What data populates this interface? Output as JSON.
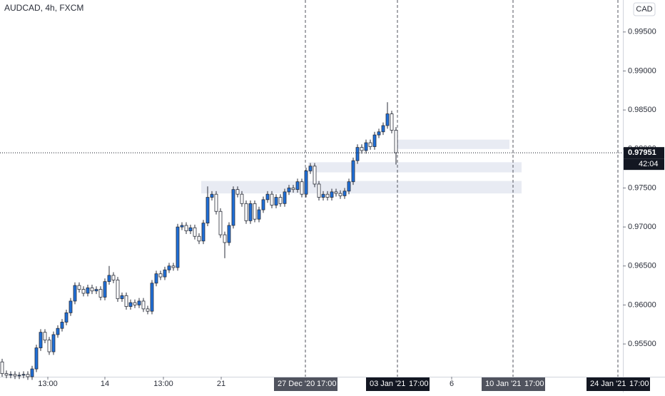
{
  "chart_data": {
    "type": "candlestick",
    "title": "AUDCAD, 4h, FXCM",
    "currency": "CAD",
    "countdown": "42:04",
    "up_color": "#1e6fd9",
    "down_color": "#ffffff",
    "wick_color": "#2a2e39",
    "ylim": [
      0.9508,
      0.9991
    ],
    "yticks": [
      {
        "value": 0.955,
        "label": "0.95500"
      },
      {
        "value": 0.96,
        "label": "0.96000"
      },
      {
        "value": 0.965,
        "label": "0.96500"
      },
      {
        "value": 0.97,
        "label": "0.97000"
      },
      {
        "value": 0.975,
        "label": "0.97500"
      },
      {
        "value": 0.98,
        "label": "0.98000"
      },
      {
        "value": 0.985,
        "label": "0.98500"
      },
      {
        "value": 0.99,
        "label": "0.99000"
      },
      {
        "value": 0.995,
        "label": "0.99500"
      }
    ],
    "xlim": [
      -0.5,
      145
    ],
    "xticks": [
      {
        "value": 10.67,
        "label": "13:00"
      },
      {
        "value": 24,
        "label": "14"
      },
      {
        "value": 37.67,
        "label": "13:00"
      },
      {
        "value": 51.17,
        "label": "21"
      },
      {
        "value": 105,
        "label": "6"
      }
    ],
    "time_markers": [
      {
        "date": "27 Dec '20",
        "time": "17:00"
      },
      {
        "date": "03 Jan '21",
        "time": "17:00"
      },
      {
        "date": "10 Jan '21",
        "time": "17:00"
      },
      {
        "date": "24 Jan '21",
        "time": "17:00"
      }
    ],
    "zones": [
      {
        "low": 0.98,
        "high": 0.9812
      },
      {
        "low": 0.977,
        "high": 0.9783
      },
      {
        "low": 0.9743,
        "high": 0.9759
      }
    ],
    "open": [
      0.9527,
      0.9512,
      0.951,
      0.9511,
      0.9509,
      0.951,
      0.9511,
      0.9508,
      0.9518,
      0.9545,
      0.9565,
      0.9555,
      0.954,
      0.9562,
      0.957,
      0.9578,
      0.959,
      0.9605,
      0.9625,
      0.962,
      0.9615,
      0.9622,
      0.9618,
      0.962,
      0.961,
      0.963,
      0.9638,
      0.9632,
      0.9608,
      0.9612,
      0.9598,
      0.9603,
      0.96,
      0.9605,
      0.9595,
      0.9592,
      0.9628,
      0.964,
      0.9636,
      0.9645,
      0.965,
      0.9648,
      0.97,
      0.9702,
      0.9695,
      0.9699,
      0.9688,
      0.9682,
      0.9705,
      0.9738,
      0.9742,
      0.972,
      0.969,
      0.968,
      0.9702,
      0.9748,
      0.9742,
      0.973,
      0.9708,
      0.973,
      0.971,
      0.9722,
      0.9735,
      0.9742,
      0.9728,
      0.9738,
      0.973,
      0.9745,
      0.975,
      0.9748,
      0.9758,
      0.9742,
      0.9772,
      0.9778,
      0.9755,
      0.9738,
      0.9742,
      0.9738,
      0.9745,
      0.9743,
      0.974,
      0.9746,
      0.9758,
      0.9785,
      0.9802,
      0.9798,
      0.9808,
      0.9803,
      0.9818,
      0.9822,
      0.983,
      0.9845,
      0.9824
    ],
    "high": [
      0.9531,
      0.9516,
      0.9515,
      0.9515,
      0.9514,
      0.9515,
      0.9515,
      0.9522,
      0.9549,
      0.9569,
      0.9569,
      0.9559,
      0.9566,
      0.9574,
      0.9582,
      0.9594,
      0.9609,
      0.9629,
      0.9629,
      0.9624,
      0.9626,
      0.9626,
      0.9624,
      0.9624,
      0.9634,
      0.965,
      0.9642,
      0.9636,
      0.9616,
      0.9616,
      0.9607,
      0.9607,
      0.9609,
      0.9609,
      0.9599,
      0.9632,
      0.9644,
      0.9644,
      0.9649,
      0.9654,
      0.9654,
      0.9704,
      0.9706,
      0.9706,
      0.9703,
      0.9703,
      0.9692,
      0.9709,
      0.9752,
      0.9746,
      0.9746,
      0.9724,
      0.9694,
      0.9706,
      0.9752,
      0.9752,
      0.9746,
      0.9734,
      0.9734,
      0.9734,
      0.9726,
      0.9739,
      0.9746,
      0.9746,
      0.9742,
      0.9742,
      0.9749,
      0.9754,
      0.9754,
      0.9762,
      0.9762,
      0.9776,
      0.9782,
      0.9782,
      0.9759,
      0.9746,
      0.9746,
      0.9749,
      0.9749,
      0.9747,
      0.975,
      0.9762,
      0.9789,
      0.9806,
      0.9806,
      0.9812,
      0.9812,
      0.9822,
      0.9826,
      0.9834,
      0.986,
      0.9849,
      0.9828
    ],
    "low": [
      0.9508,
      0.9506,
      0.9506,
      0.9505,
      0.9505,
      0.9506,
      0.9504,
      0.9504,
      0.9514,
      0.9541,
      0.9551,
      0.9536,
      0.9536,
      0.9558,
      0.9566,
      0.9574,
      0.9586,
      0.9601,
      0.9616,
      0.9611,
      0.9611,
      0.9614,
      0.9614,
      0.9606,
      0.9606,
      0.9626,
      0.9628,
      0.9604,
      0.9604,
      0.9594,
      0.9594,
      0.9596,
      0.9596,
      0.9591,
      0.9588,
      0.9588,
      0.9624,
      0.9632,
      0.9632,
      0.9641,
      0.9644,
      0.9644,
      0.9696,
      0.9691,
      0.9691,
      0.9684,
      0.9678,
      0.9678,
      0.9701,
      0.9734,
      0.9716,
      0.9686,
      0.966,
      0.9676,
      0.9698,
      0.9738,
      0.9726,
      0.9704,
      0.9704,
      0.9706,
      0.9706,
      0.9718,
      0.9731,
      0.9724,
      0.9724,
      0.9726,
      0.9726,
      0.9741,
      0.9744,
      0.9744,
      0.9738,
      0.9738,
      0.9768,
      0.9751,
      0.9734,
      0.9734,
      0.9734,
      0.9734,
      0.9739,
      0.9736,
      0.9736,
      0.9742,
      0.9754,
      0.9781,
      0.9794,
      0.9794,
      0.9799,
      0.9799,
      0.9814,
      0.9818,
      0.9826,
      0.982,
      0.978
    ],
    "close": [
      0.9512,
      0.951,
      0.9511,
      0.9509,
      0.951,
      0.9511,
      0.9508,
      0.9518,
      0.9545,
      0.9565,
      0.9555,
      0.954,
      0.9562,
      0.957,
      0.9578,
      0.959,
      0.9605,
      0.9625,
      0.962,
      0.9615,
      0.9622,
      0.9618,
      0.962,
      0.961,
      0.963,
      0.9638,
      0.9632,
      0.9608,
      0.9612,
      0.9598,
      0.9603,
      0.96,
      0.9605,
      0.9595,
      0.9592,
      0.9628,
      0.964,
      0.9636,
      0.9645,
      0.965,
      0.9648,
      0.97,
      0.9702,
      0.9695,
      0.9699,
      0.9688,
      0.9682,
      0.9705,
      0.9738,
      0.9742,
      0.972,
      0.969,
      0.968,
      0.9702,
      0.9748,
      0.9742,
      0.973,
      0.9708,
      0.973,
      0.971,
      0.9722,
      0.9735,
      0.9742,
      0.9728,
      0.9738,
      0.973,
      0.9745,
      0.975,
      0.9748,
      0.9758,
      0.9742,
      0.9772,
      0.9778,
      0.9755,
      0.9738,
      0.9742,
      0.9738,
      0.9745,
      0.9743,
      0.974,
      0.9746,
      0.9758,
      0.9785,
      0.9802,
      0.9798,
      0.9808,
      0.9803,
      0.9818,
      0.9822,
      0.983,
      0.9845,
      0.9824,
      0.97951
    ]
  }
}
